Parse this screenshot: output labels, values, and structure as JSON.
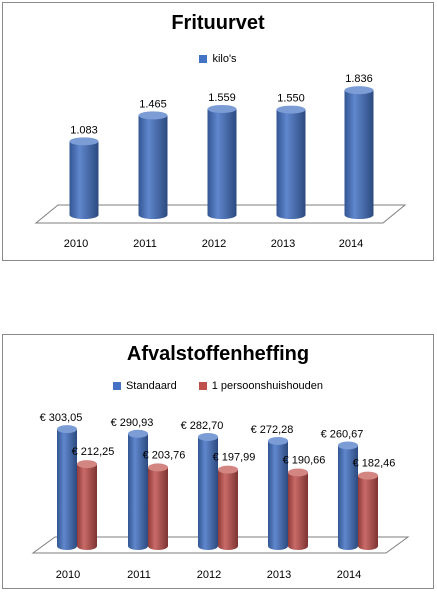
{
  "chart_data": [
    {
      "type": "bar",
      "title": "Frituurvet",
      "categories": [
        "2010",
        "2011",
        "2012",
        "2013",
        "2014"
      ],
      "series": [
        {
          "name": "kilo's",
          "values": [
            1083,
            1465,
            1559,
            1550,
            1836
          ],
          "labels": [
            "1.083",
            "1.465",
            "1.559",
            "1.550",
            "1.836"
          ],
          "color": "#4472c4"
        }
      ],
      "ylim": [
        0,
        2000
      ],
      "legend_position": "top",
      "grid": false
    },
    {
      "type": "bar",
      "title": "Afvalstoffenheffing",
      "categories": [
        "2010",
        "2011",
        "2012",
        "2013",
        "2014"
      ],
      "series": [
        {
          "name": "Standaard",
          "values": [
            303.05,
            290.93,
            282.7,
            272.28,
            260.67
          ],
          "labels": [
            "€ 303,05",
            "€ 290,93",
            "€ 282,70",
            "€ 272,28",
            "€ 260,67"
          ],
          "color": "#4472c4"
        },
        {
          "name": "1 persoonshuishouden",
          "values": [
            212.25,
            203.76,
            197.99,
            190.66,
            182.46
          ],
          "labels": [
            "€ 212,25",
            "€ 203,76",
            "€ 197,99",
            "€ 190,66",
            "€ 182,46"
          ],
          "color": "#c0504d"
        }
      ],
      "ylim": [
        0,
        350
      ],
      "legend_position": "top",
      "grid": false
    }
  ]
}
